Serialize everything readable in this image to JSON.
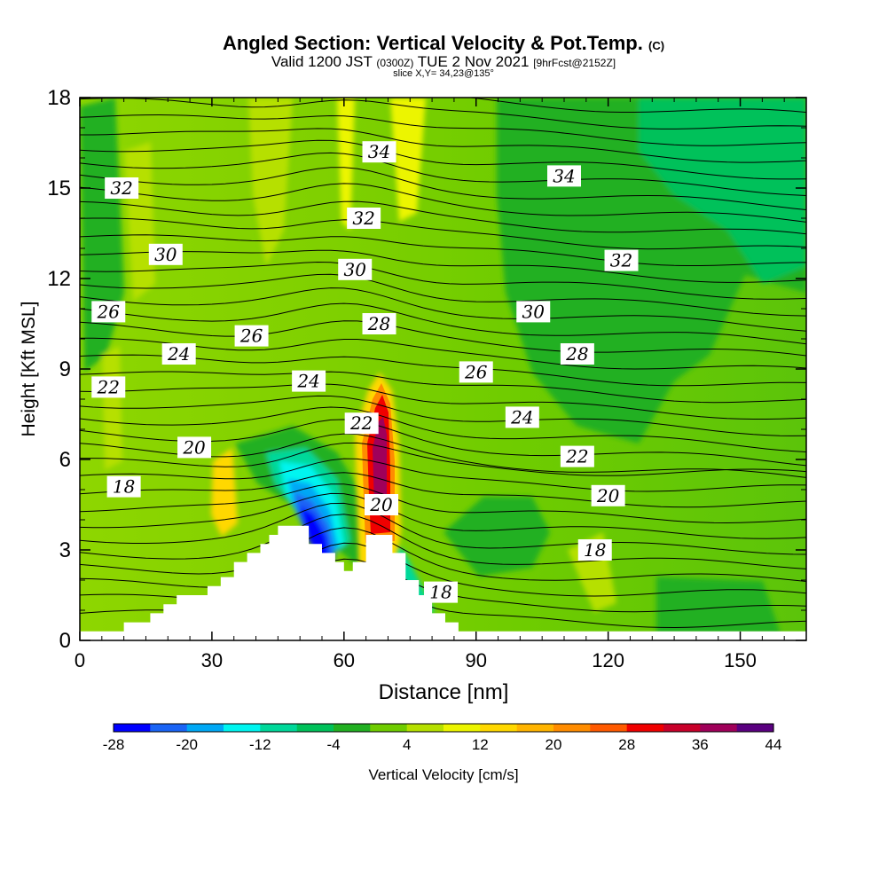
{
  "chart_data": {
    "type": "heatmap",
    "title": "Angled Section: Vertical Velocity & Pot.Temp.",
    "title_suffix": "(C)",
    "subtitle_valid": "Valid 1200 JST",
    "subtitle_utc": "(0300Z)",
    "subtitle_date": "TUE 2 Nov 2021",
    "subtitle_fcst": "[9hrFcst@2152Z]",
    "slice_label": "slice X,Y= 34,23@135°",
    "xlabel": "Distance [nm]",
    "ylabel": "Height [Kft MSL]",
    "xlim": [
      0,
      165
    ],
    "ylim": [
      0,
      18
    ],
    "x_ticks": [
      "0",
      "30",
      "60",
      "90",
      "120",
      "150"
    ],
    "y_ticks": [
      "0",
      "3",
      "6",
      "9",
      "12",
      "15",
      "18"
    ],
    "colorbar": {
      "title": "Vertical Velocity [cm/s]",
      "labels": [
        "-28",
        "-20",
        "-12",
        "-4",
        "4",
        "12",
        "20",
        "28",
        "36",
        "44"
      ],
      "colors": [
        "#0000ff",
        "#1a64f5",
        "#00a8f5",
        "#00f5f0",
        "#00d89a",
        "#00c15a",
        "#22b022",
        "#6fcc00",
        "#b6e000",
        "#ecf500",
        "#ffd800",
        "#ffb400",
        "#ff8c00",
        "#ff5a00",
        "#f00000",
        "#c8002a",
        "#a0005a",
        "#5a0080"
      ]
    },
    "terrain": [
      [
        0,
        0.3
      ],
      [
        10,
        0.3
      ],
      [
        10,
        0.6
      ],
      [
        16,
        0.6
      ],
      [
        16,
        0.9
      ],
      [
        19,
        0.9
      ],
      [
        19,
        1.2
      ],
      [
        22,
        1.2
      ],
      [
        22,
        1.5
      ],
      [
        29,
        1.5
      ],
      [
        29,
        1.8
      ],
      [
        32,
        1.8
      ],
      [
        32,
        2.1
      ],
      [
        35,
        2.1
      ],
      [
        35,
        2.6
      ],
      [
        38,
        2.6
      ],
      [
        38,
        2.9
      ],
      [
        41,
        2.9
      ],
      [
        41,
        3.2
      ],
      [
        43,
        3.2
      ],
      [
        43,
        3.5
      ],
      [
        45,
        3.5
      ],
      [
        45,
        3.8
      ],
      [
        52,
        3.8
      ],
      [
        52,
        3.2
      ],
      [
        55,
        3.2
      ],
      [
        55,
        2.9
      ],
      [
        58,
        2.9
      ],
      [
        58,
        2.6
      ],
      [
        60,
        2.6
      ],
      [
        60,
        2.3
      ],
      [
        62,
        2.3
      ],
      [
        62,
        2.6
      ],
      [
        65,
        2.6
      ],
      [
        65,
        3.5
      ],
      [
        71,
        3.5
      ],
      [
        71,
        2.9
      ],
      [
        74,
        2.9
      ],
      [
        74,
        2.0
      ],
      [
        77,
        2.0
      ],
      [
        77,
        1.5
      ],
      [
        80,
        1.5
      ],
      [
        80,
        0.9
      ],
      [
        83,
        0.9
      ],
      [
        83,
        0.6
      ],
      [
        86,
        0.6
      ],
      [
        86,
        0.3
      ],
      [
        165,
        0.3
      ]
    ],
    "theta_labels": [
      {
        "text": "34",
        "x": 68,
        "y": 16.2
      },
      {
        "text": "34",
        "x": 110,
        "y": 15.4
      },
      {
        "text": "32",
        "x": 9.5,
        "y": 15.0
      },
      {
        "text": "32",
        "x": 64.5,
        "y": 14.0
      },
      {
        "text": "32",
        "x": 123,
        "y": 12.6
      },
      {
        "text": "30",
        "x": 19.5,
        "y": 12.8
      },
      {
        "text": "30",
        "x": 62.5,
        "y": 12.3
      },
      {
        "text": "30",
        "x": 103,
        "y": 10.9
      },
      {
        "text": "28",
        "x": 68,
        "y": 10.5
      },
      {
        "text": "28",
        "x": 113,
        "y": 9.5
      },
      {
        "text": "26",
        "x": 6.5,
        "y": 10.9
      },
      {
        "text": "26",
        "x": 39,
        "y": 10.1
      },
      {
        "text": "26",
        "x": 90,
        "y": 8.9
      },
      {
        "text": "24",
        "x": 22.5,
        "y": 9.5
      },
      {
        "text": "24",
        "x": 52,
        "y": 8.6
      },
      {
        "text": "24",
        "x": 100.5,
        "y": 7.4
      },
      {
        "text": "22",
        "x": 6.5,
        "y": 8.4
      },
      {
        "text": "22",
        "x": 64,
        "y": 7.2
      },
      {
        "text": "22",
        "x": 113,
        "y": 6.1
      },
      {
        "text": "20",
        "x": 26,
        "y": 6.4
      },
      {
        "text": "20",
        "x": 68.5,
        "y": 4.5
      },
      {
        "text": "20",
        "x": 120,
        "y": 4.8
      },
      {
        "text": "18",
        "x": 10,
        "y": 5.1
      },
      {
        "text": "18",
        "x": 117,
        "y": 3.0
      },
      {
        "text": "18",
        "x": 82,
        "y": 1.6
      }
    ]
  }
}
